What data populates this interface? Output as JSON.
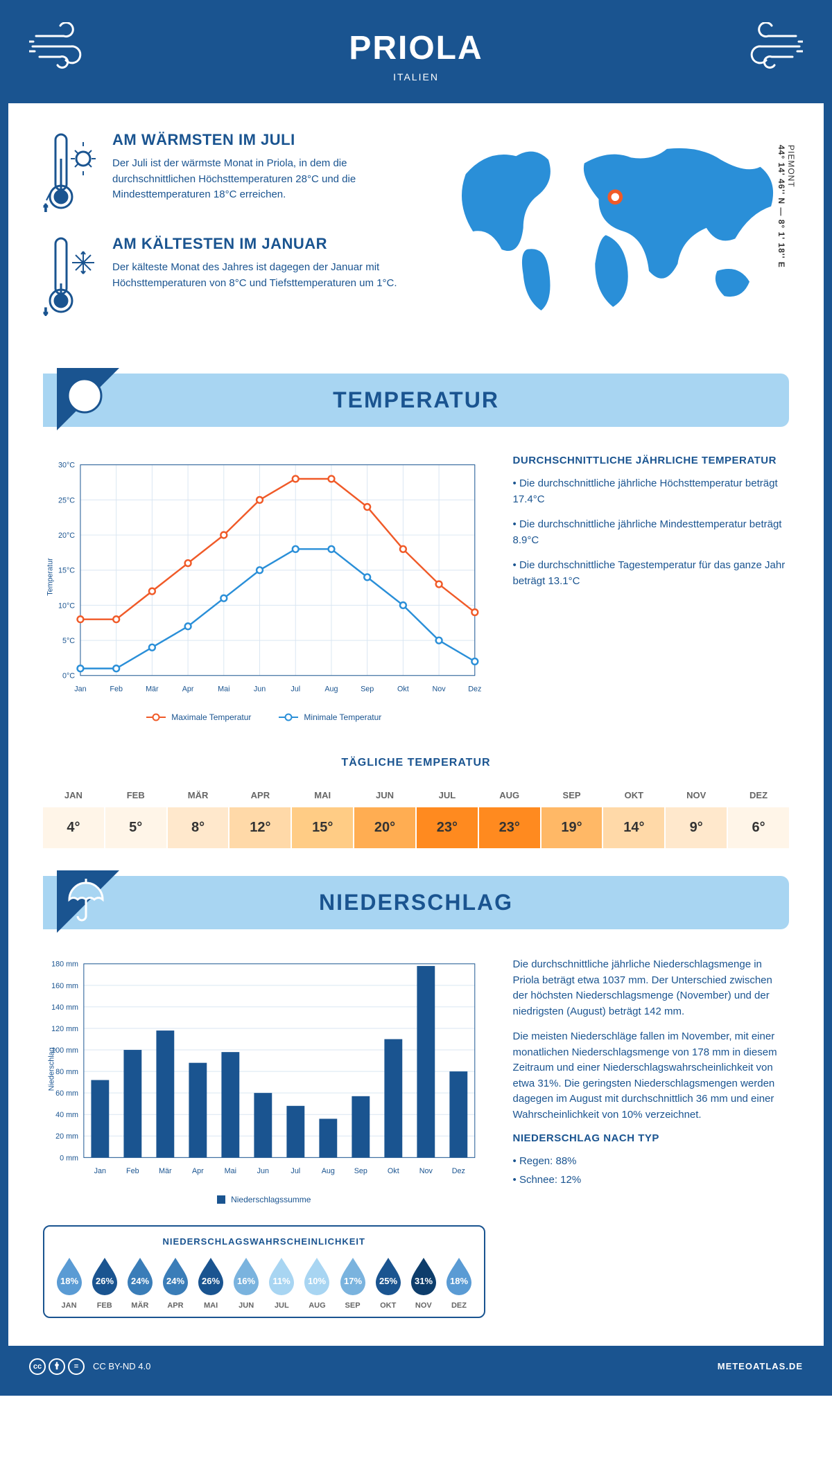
{
  "header": {
    "city": "PRIOLA",
    "country": "ITALIEN"
  },
  "coords": {
    "region": "PIEMONT",
    "lat_lon": "44° 14' 46'' N — 8° 1' 18'' E"
  },
  "warmest": {
    "title": "AM WÄRMSTEN IM JULI",
    "text": "Der Juli ist der wärmste Monat in Priola, in dem die durchschnittlichen Höchsttemperaturen 28°C und die Mindesttemperaturen 18°C erreichen."
  },
  "coldest": {
    "title": "AM KÄLTESTEN IM JANUAR",
    "text": "Der kälteste Monat des Jahres ist dagegen der Januar mit Höchsttemperaturen von 8°C und Tiefsttemperaturen um 1°C."
  },
  "temp_section": {
    "heading": "TEMPERATUR",
    "chart": {
      "type": "line",
      "months": [
        "Jan",
        "Feb",
        "Mär",
        "Apr",
        "Mai",
        "Jun",
        "Jul",
        "Aug",
        "Sep",
        "Okt",
        "Nov",
        "Dez"
      ],
      "max_series": {
        "label": "Maximale Temperatur",
        "color": "#f05a28",
        "values": [
          8,
          8,
          12,
          16,
          20,
          25,
          28,
          28,
          24,
          18,
          13,
          9
        ]
      },
      "min_series": {
        "label": "Minimale Temperatur",
        "color": "#2a8fd8",
        "values": [
          1,
          1,
          4,
          7,
          11,
          15,
          18,
          18,
          14,
          10,
          5,
          2
        ]
      },
      "ylabel": "Temperatur",
      "ylim": [
        0,
        30
      ],
      "ytick_step": 5,
      "grid_color": "#d9e6f2",
      "bg": "#ffffff",
      "axis_font": 11
    },
    "annual": {
      "heading": "DURCHSCHNITTLICHE JÄHRLICHE TEMPERATUR",
      "b1": "• Die durchschnittliche jährliche Höchsttemperatur beträgt 17.4°C",
      "b2": "• Die durchschnittliche jährliche Mindesttemperatur beträgt 8.9°C",
      "b3": "• Die durchschnittliche Tagestemperatur für das ganze Jahr beträgt 13.1°C"
    },
    "daily": {
      "heading": "TÄGLICHE TEMPERATUR",
      "months": [
        "JAN",
        "FEB",
        "MÄR",
        "APR",
        "MAI",
        "JUN",
        "JUL",
        "AUG",
        "SEP",
        "OKT",
        "NOV",
        "DEZ"
      ],
      "values": [
        "4°",
        "5°",
        "8°",
        "12°",
        "15°",
        "20°",
        "23°",
        "23°",
        "19°",
        "14°",
        "9°",
        "6°"
      ],
      "colors": [
        "#fff5e8",
        "#fff5e8",
        "#ffe8cc",
        "#ffd9a8",
        "#ffcc85",
        "#ffad52",
        "#ff8a1f",
        "#ff8a1f",
        "#ffb866",
        "#ffd9a8",
        "#ffe8cc",
        "#fff5e8"
      ]
    }
  },
  "precip_section": {
    "heading": "NIEDERSCHLAG",
    "chart": {
      "type": "bar",
      "months": [
        "Jan",
        "Feb",
        "Mär",
        "Apr",
        "Mai",
        "Jun",
        "Jul",
        "Aug",
        "Sep",
        "Okt",
        "Nov",
        "Dez"
      ],
      "values": [
        72,
        100,
        118,
        88,
        98,
        60,
        48,
        36,
        57,
        110,
        178,
        80
      ],
      "bar_color": "#1a5490",
      "legend_label": "Niederschlagssumme",
      "ylabel": "Niederschlag",
      "ylim": [
        0,
        180
      ],
      "ytick_step": 20,
      "grid_color": "#d9e6f2",
      "bg": "#ffffff",
      "axis_font": 11
    },
    "p1": "Die durchschnittliche jährliche Niederschlagsmenge in Priola beträgt etwa 1037 mm. Der Unterschied zwischen der höchsten Niederschlagsmenge (November) und der niedrigsten (August) beträgt 142 mm.",
    "p2": "Die meisten Niederschläge fallen im November, mit einer monatlichen Niederschlagsmenge von 178 mm in diesem Zeitraum und einer Niederschlagswahrscheinlichkeit von etwa 31%. Die geringsten Niederschlagsmengen werden dagegen im August mit durchschnittlich 36 mm und einer Wahrscheinlichkeit von 10% verzeichnet.",
    "by_type": {
      "heading": "NIEDERSCHLAG NACH TYP",
      "rain": "• Regen: 88%",
      "snow": "• Schnee: 12%"
    },
    "probability": {
      "title": "NIEDERSCHLAGSWAHRSCHEINLICHKEIT",
      "months": [
        "JAN",
        "FEB",
        "MÄR",
        "APR",
        "MAI",
        "JUN",
        "JUL",
        "AUG",
        "SEP",
        "OKT",
        "NOV",
        "DEZ"
      ],
      "values": [
        18,
        26,
        24,
        24,
        26,
        16,
        11,
        10,
        17,
        25,
        31,
        18
      ],
      "colors": [
        "#5a9bd4",
        "#1a5490",
        "#3a7db8",
        "#3a7db8",
        "#1a5490",
        "#7ab3de",
        "#a8d5f2",
        "#a8d5f2",
        "#7ab3de",
        "#1a5490",
        "#0d3d6b",
        "#5a9bd4"
      ]
    }
  },
  "footer": {
    "license": "CC BY-ND 4.0",
    "site": "METEOATLAS.DE"
  },
  "colors": {
    "primary": "#1a5490",
    "light": "#a8d5f2",
    "orange": "#f05a28",
    "blue": "#2a8fd8"
  }
}
